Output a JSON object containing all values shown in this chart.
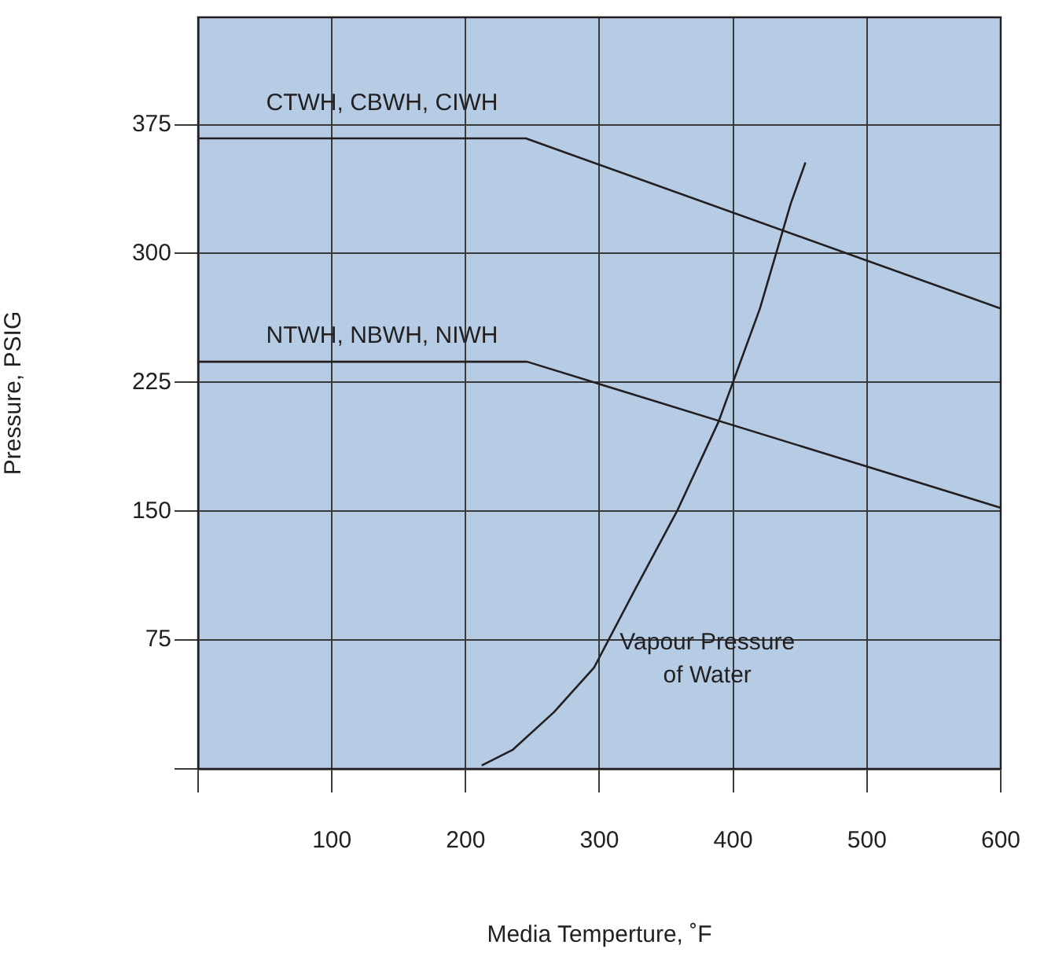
{
  "chart_data": {
    "type": "line",
    "xlabel": "Media Temperture, ˚F",
    "ylabel": "Pressure, PSIG",
    "xlim": [
      0,
      600
    ],
    "xticks": [
      {
        "value": 0,
        "label": null
      },
      100,
      200,
      300,
      400,
      500,
      600
    ],
    "ylim": [
      0,
      437.5
    ],
    "yticks": [
      {
        "value": 0,
        "label": null
      },
      75,
      150,
      225,
      300,
      375
    ],
    "grid": true,
    "legend": false,
    "marker": "none",
    "line_style": "solid",
    "series": [
      {
        "name": "CTWH, CBWH, CIWH",
        "color": "#231f20",
        "x": [
          0,
          245,
          600
        ],
        "values": [
          367,
          367,
          268
        ]
      },
      {
        "name": "NTWH, NBWH, NIWH",
        "color": "#231f20",
        "x": [
          0,
          246,
          600
        ],
        "values": [
          237,
          237,
          152
        ]
      },
      {
        "name": "Vapour Pressure\nof Water",
        "color": "#231f20",
        "x": [
          212,
          235,
          266,
          296,
          327,
          358,
          389,
          420,
          443,
          454
        ],
        "values": [
          2,
          11,
          33,
          59,
          105,
          150,
          202,
          268,
          329,
          353
        ]
      }
    ]
  }
}
